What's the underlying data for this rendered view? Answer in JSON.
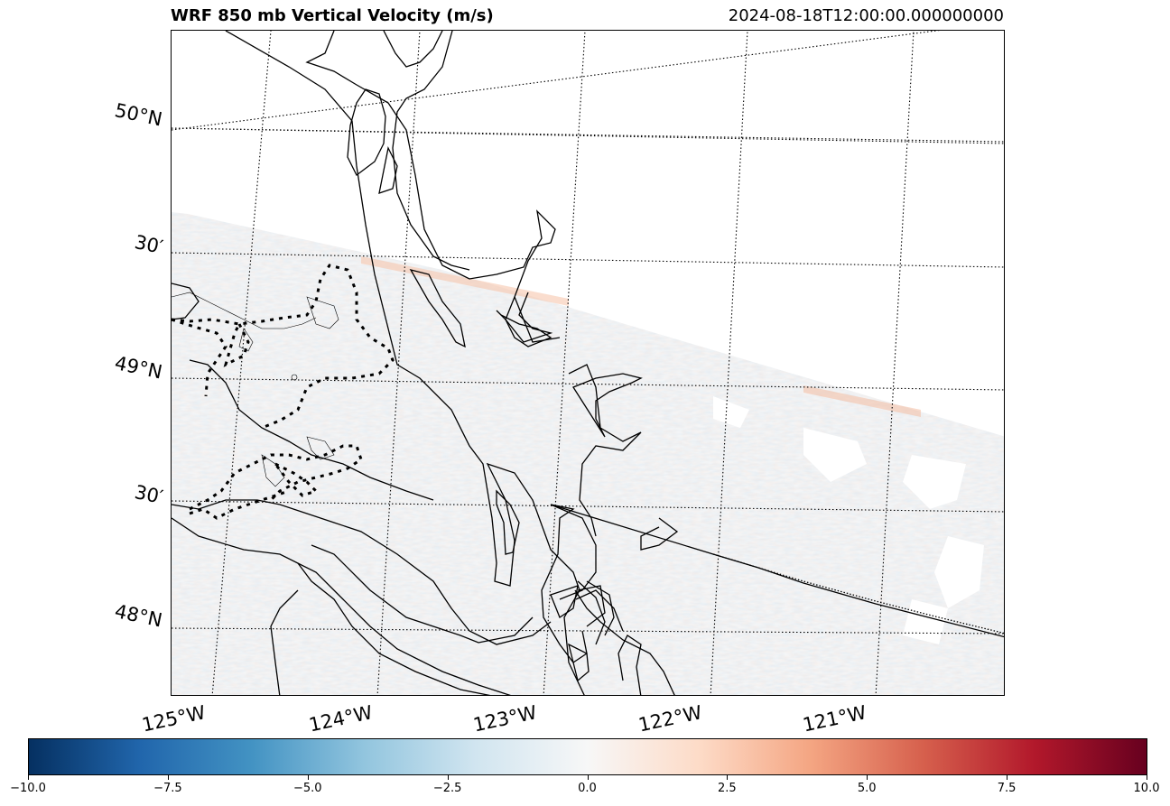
{
  "title": "WRF 850 mb Vertical Velocity (m/s)",
  "timestamp": "2024-08-18T12:00:00.000000000",
  "lat_labels": [
    "50°N",
    "30′",
    "49°N",
    "30′",
    "48°N"
  ],
  "lon_labels": [
    "125°W",
    "124°W",
    "123°W",
    "122°W",
    "121°W"
  ],
  "colorbar": {
    "min": -10.0,
    "max": 10.0,
    "colormap": "RdBu_r",
    "colors": [
      "#053061",
      "#2166ac",
      "#4393c3",
      "#92c5de",
      "#d1e5f0",
      "#f7f7f7",
      "#fddbc7",
      "#f4a582",
      "#d6604d",
      "#b2182b",
      "#67001f"
    ],
    "tick_labels": [
      "−10.0",
      "−7.5",
      "−5.0",
      "−2.5",
      "0.0",
      "2.5",
      "5.0",
      "7.5",
      "10.0"
    ]
  }
}
